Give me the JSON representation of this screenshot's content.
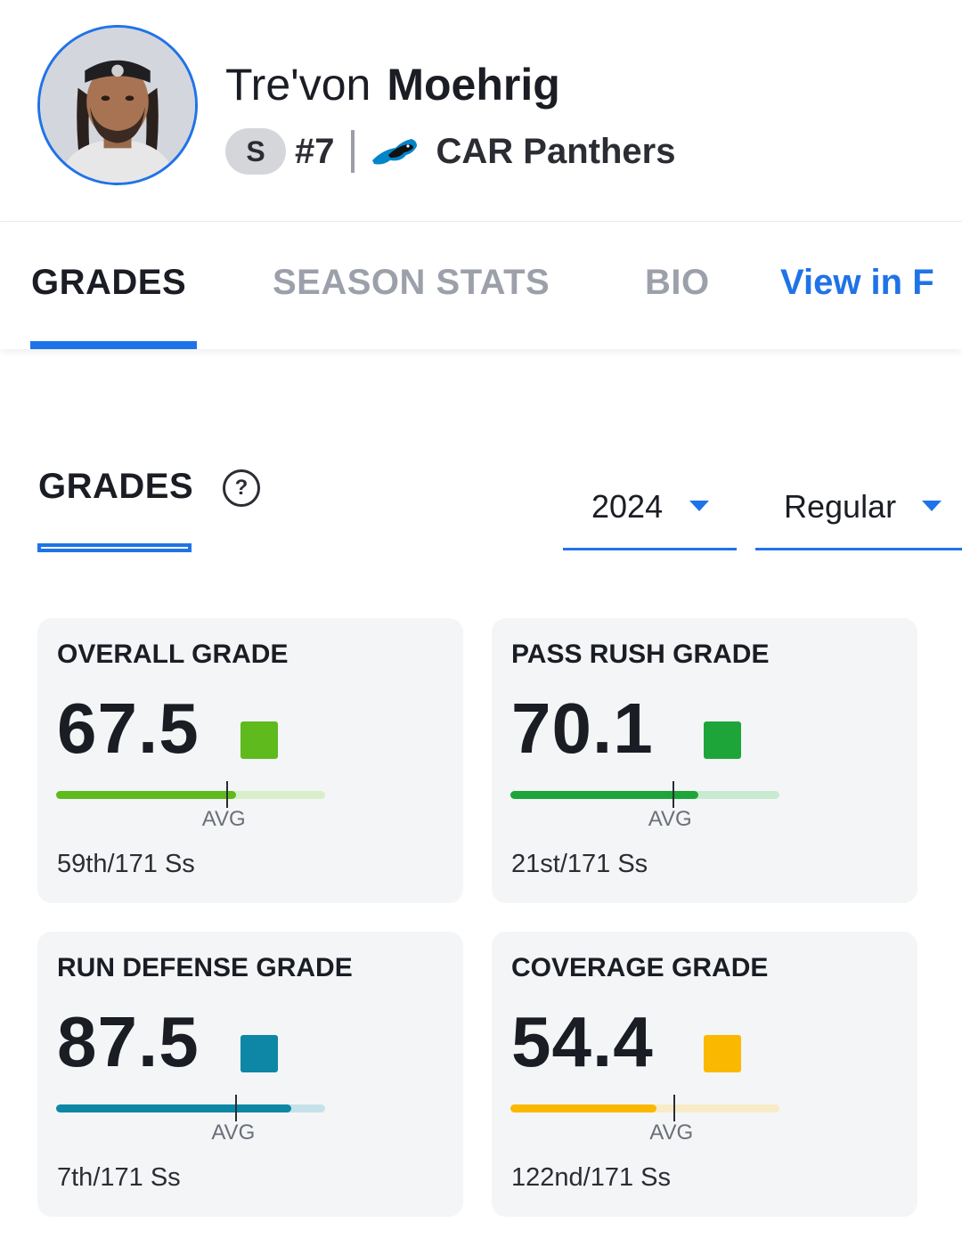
{
  "player": {
    "first_name": "Tre'von",
    "last_name": "Moehrig",
    "position": "S",
    "jersey": "#7",
    "team": "CAR Panthers"
  },
  "tabs": [
    {
      "label": "GRADES",
      "active": true
    },
    {
      "label": "SEASON STATS",
      "active": false
    },
    {
      "label": "BIO",
      "active": false
    },
    {
      "label": "View in F",
      "active": false
    }
  ],
  "section": {
    "title": "GRADES",
    "help_symbol": "?",
    "year": "2024",
    "season_type": "Regular"
  },
  "grades": [
    {
      "label": "OVERALL GRADE",
      "value": "67.5",
      "color": "#5fba1d",
      "track_color": "#d9efc9",
      "fill_pct": 0.67,
      "avg_pct": 0.635,
      "avg_label": "AVG",
      "rank": "59th/171 Ss"
    },
    {
      "label": "PASS RUSH GRADE",
      "value": "70.1",
      "color": "#1ea53a",
      "track_color": "#c8ead0",
      "fill_pct": 0.7,
      "avg_pct": 0.605,
      "avg_label": "AVG",
      "rank": "21st/171 Ss"
    },
    {
      "label": "RUN DEFENSE GRADE",
      "value": "87.5",
      "color": "#0e87a6",
      "track_color": "#c5e2ea",
      "fill_pct": 0.875,
      "avg_pct": 0.67,
      "avg_label": "AVG",
      "rank": "7th/171 Ss"
    },
    {
      "label": "COVERAGE GRADE",
      "value": "54.4",
      "color": "#fbb800",
      "track_color": "#f8ebc7",
      "fill_pct": 0.544,
      "avg_pct": 0.61,
      "avg_label": "AVG",
      "rank": "122nd/171 Ss"
    }
  ],
  "colors": {
    "accent": "#1f73e8"
  }
}
